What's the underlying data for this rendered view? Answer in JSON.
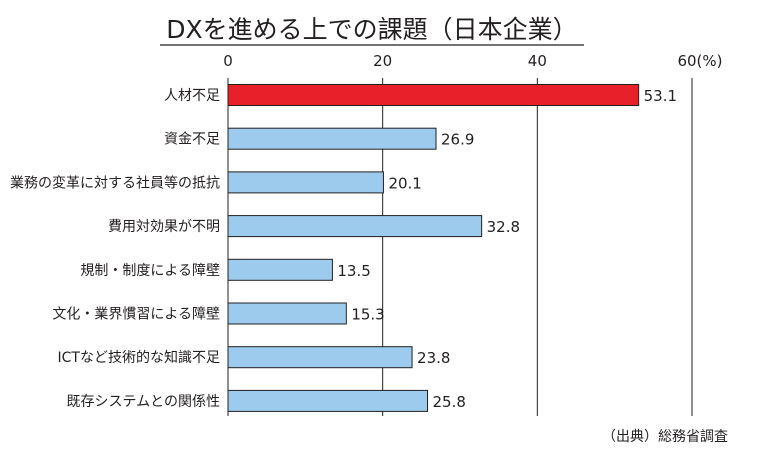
{
  "chart_data": {
    "type": "bar",
    "orientation": "horizontal",
    "title": "DXを進める上での課題（日本企業）",
    "unit_label": "60(%)",
    "categories": [
      "人材不足",
      "資金不足",
      "業務の変革に対する社員等の抵抗",
      "費用対効果が不明",
      "規制・制度による障壁",
      "文化・業界慣習による障壁",
      "ICTなど技術的な知識不足",
      "既存システムとの関係性"
    ],
    "values": [
      53.1,
      26.9,
      20.1,
      32.8,
      13.5,
      15.3,
      23.8,
      25.8
    ],
    "value_labels": [
      "53.1",
      "26.9",
      "20.1",
      "32.8",
      "13.5",
      "15.3",
      "23.8",
      "25.8"
    ],
    "xlim": [
      0,
      60
    ],
    "xticks": [
      0,
      20,
      40
    ],
    "highlight_index": 0,
    "grid": true,
    "source": "（出典）総務省調査"
  },
  "colors": {
    "bar": "#9ccbee",
    "bar_highlight": "#e8202a",
    "bar_stroke": "#231f20",
    "highlight_label": "#e8202a",
    "text": "#231f20",
    "grid": "#231f20"
  }
}
